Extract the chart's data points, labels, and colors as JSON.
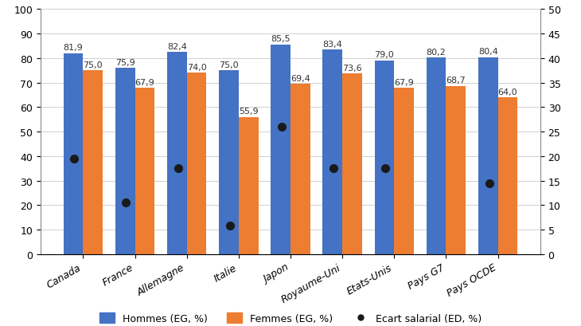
{
  "categories": [
    "Canada",
    "France",
    "Allemagne",
    "Italie",
    "Japon",
    "Royaume-Uni",
    "Etats-Unis",
    "Pays G7",
    "Pays OCDE"
  ],
  "hommes": [
    81.9,
    75.9,
    82.4,
    75.0,
    85.5,
    83.4,
    79.0,
    80.2,
    80.4
  ],
  "femmes": [
    75.0,
    67.9,
    74.0,
    55.9,
    69.4,
    73.6,
    67.9,
    68.7,
    64.0
  ],
  "ecart_right": [
    19.5,
    10.5,
    17.5,
    5.8,
    26.0,
    17.5,
    17.5,
    null,
    14.5
  ],
  "bar_color_hommes": "#4472C4",
  "bar_color_femmes": "#ED7D31",
  "dot_color": "#1a1a1a",
  "ylim_left": [
    0,
    100
  ],
  "ylim_right": [
    0,
    50
  ],
  "yticks_left": [
    0,
    10,
    20,
    30,
    40,
    50,
    60,
    70,
    80,
    90,
    100
  ],
  "yticks_right": [
    0,
    5,
    10,
    15,
    20,
    25,
    30,
    35,
    40,
    45,
    50
  ],
  "legend_hommes": "Hommes (EG, %)",
  "legend_femmes": "Femmes (EG, %)",
  "legend_ecart": "Ecart salarial (ED, %)",
  "bar_width": 0.38,
  "figsize": [
    7.3,
    4.1
  ],
  "dpi": 100,
  "label_fontsize": 8,
  "tick_fontsize": 9,
  "legend_fontsize": 9
}
